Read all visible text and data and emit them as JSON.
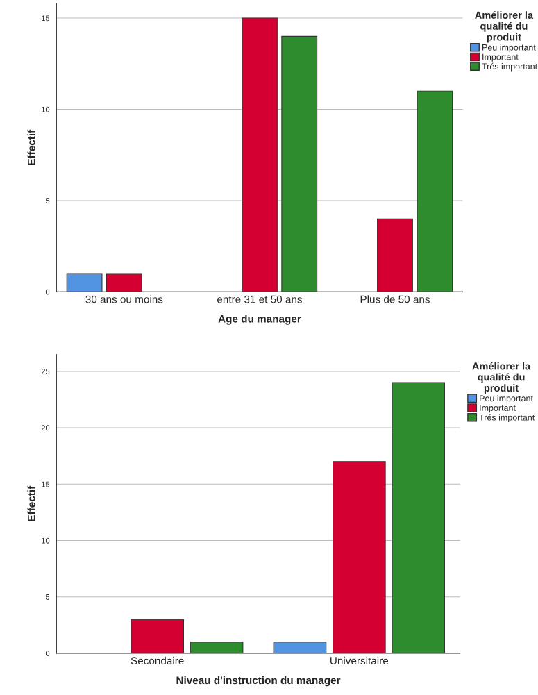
{
  "chart_data": [
    {
      "type": "bar",
      "categories": [
        "30 ans ou moins",
        "entre 31 et 50 ans",
        "Plus de 50 ans"
      ],
      "xlabel": "Age du manager",
      "ylabel": "Effectif",
      "legend_title": "Améliorer la qualité du produit",
      "legend": "right",
      "grid": "y",
      "ylim": [
        0,
        15.8
      ],
      "yticks": [
        0,
        5,
        10,
        15
      ],
      "series": [
        {
          "name": "Peu important",
          "color": "#5294e2",
          "values": [
            1,
            null,
            null
          ]
        },
        {
          "name": "Important",
          "color": "#d50032",
          "values": [
            1,
            15,
            4
          ]
        },
        {
          "name": "Trés important",
          "color": "#2e8b2e",
          "values": [
            null,
            14,
            11
          ]
        }
      ]
    },
    {
      "type": "bar",
      "categories": [
        "Secondaire",
        "Universitaire"
      ],
      "xlabel": "Niveau d'instruction du manager",
      "ylabel": "Effectif",
      "legend_title": "Améliorer la qualité du produit",
      "legend": "right",
      "grid": "y",
      "ylim": [
        0,
        26.5
      ],
      "yticks": [
        0,
        5,
        10,
        15,
        20,
        25
      ],
      "series": [
        {
          "name": "Peu important",
          "color": "#5294e2",
          "values": [
            null,
            1
          ]
        },
        {
          "name": "Important",
          "color": "#d50032",
          "values": [
            3,
            17
          ]
        },
        {
          "name": "Trés important",
          "color": "#2e8b2e",
          "values": [
            1,
            24
          ]
        }
      ]
    }
  ]
}
